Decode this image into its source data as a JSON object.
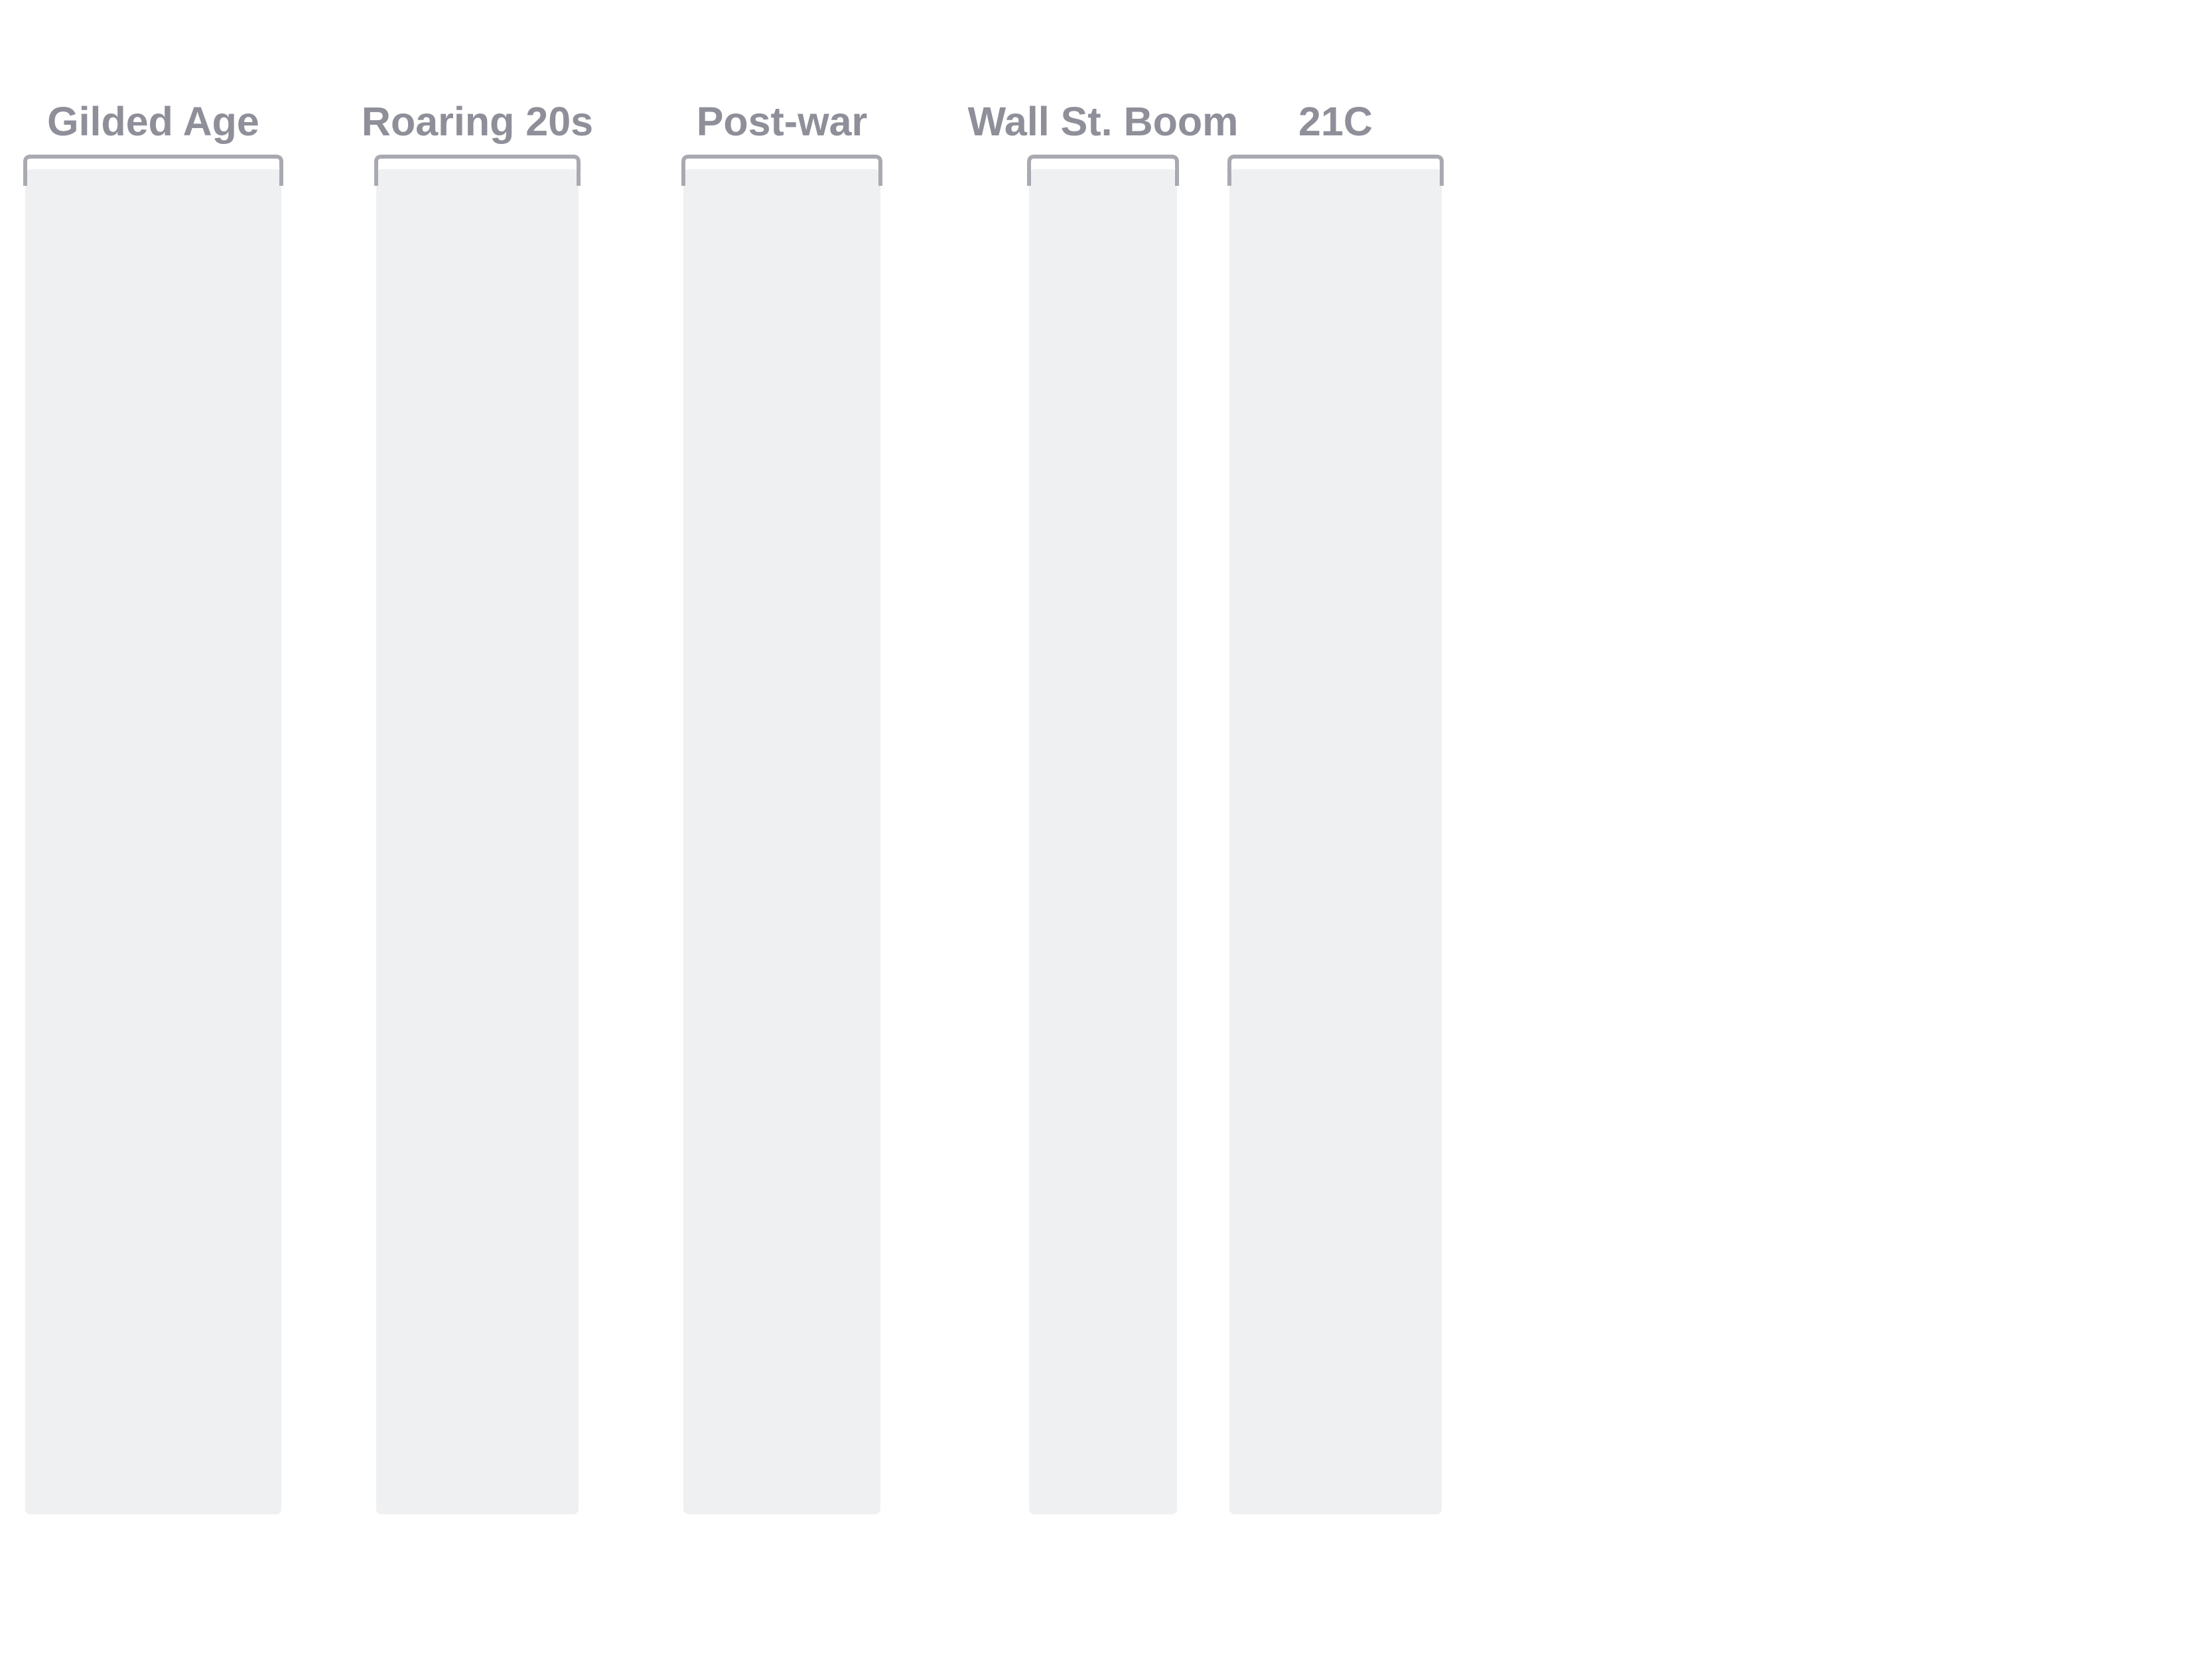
{
  "chart_data": {
    "type": "bar",
    "categories": [
      "Gilded Age",
      "Roaring 20s",
      "Post-war",
      "Wall St. Boom",
      "21C"
    ],
    "values": [
      null,
      null,
      null,
      null,
      null
    ],
    "title": "",
    "xlabel": "",
    "ylabel": "",
    "grid": false,
    "legend": "none"
  },
  "colors": {
    "band_fill": "#eff0f2",
    "bracket_stroke": "#a9aab1",
    "label_text": "#8e8f99"
  }
}
